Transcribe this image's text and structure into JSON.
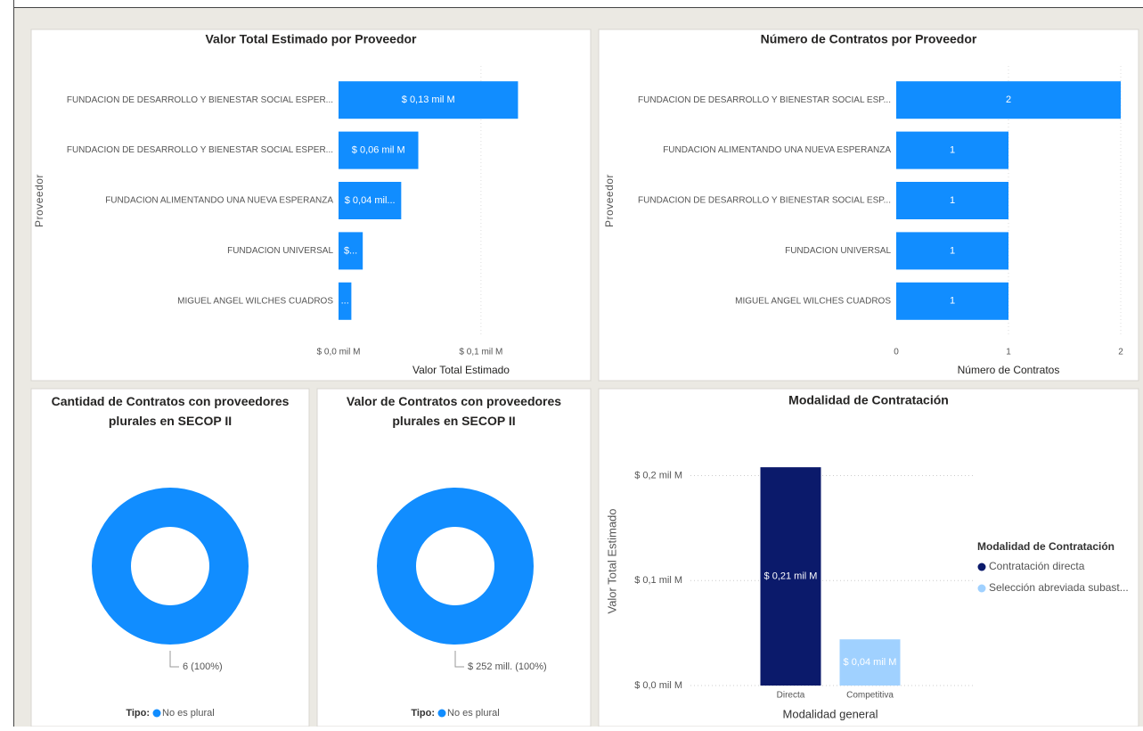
{
  "chart_data": [
    {
      "type": "bar",
      "orientation": "horizontal",
      "title": "Valor Total Estimado por Proveedor",
      "categories": [
        "FUNDACION DE DESARROLLO Y BIENESTAR SOCIAL ESPER...",
        "FUNDACION DE DESARROLLO Y BIENESTAR SOCIAL ESPER...",
        "FUNDACION ALIMENTANDO UNA NUEVA ESPERANZA",
        "FUNDACION UNIVERSAL",
        "MIGUEL ANGEL WILCHES CUADROS"
      ],
      "values": [
        0.126,
        0.056,
        0.044,
        0.017,
        0.009
      ],
      "value_labels": [
        "$ 0,13 mil M",
        "$ 0,06 mil M",
        "$ 0,04 mil...",
        "$...",
        "..."
      ],
      "color": "#118dff",
      "xlabel": "Valor Total Estimado",
      "ylabel": "Proveedor",
      "xlim": [
        0,
        0.172
      ],
      "xticks": [
        {
          "value": 0,
          "label": "$ 0,0 mil M"
        },
        {
          "value": 0.1,
          "label": "$ 0,1 mil M"
        }
      ],
      "grid": true
    },
    {
      "type": "bar",
      "orientation": "horizontal",
      "title": "Número de Contratos por Proveedor",
      "categories": [
        "FUNDACION DE DESARROLLO Y BIENESTAR SOCIAL ESP...",
        "FUNDACION ALIMENTANDO UNA NUEVA ESPERANZA",
        "FUNDACION DE DESARROLLO Y BIENESTAR SOCIAL ESP...",
        "FUNDACION UNIVERSAL",
        "MIGUEL ANGEL WILCHES CUADROS"
      ],
      "values": [
        2,
        1,
        1,
        1,
        1
      ],
      "color": "#118dff",
      "xlabel": "Número de Contratos",
      "ylabel": "Proveedor",
      "xlim": [
        0,
        2
      ],
      "xticks": [
        0,
        1,
        2
      ],
      "grid": true
    },
    {
      "type": "donut",
      "title": "Cantidad de Contratos con proveedores plurales en SECOP II",
      "categories": [
        "No es plural"
      ],
      "values": [
        6
      ],
      "value_labels": [
        "6 (100%)"
      ],
      "legend_title": "Tipo:",
      "color": "#118dff"
    },
    {
      "type": "donut",
      "title": "Valor de Contratos con proveedores plurales en SECOP II",
      "categories": [
        "No es plural"
      ],
      "values": [
        252
      ],
      "value_labels": [
        "$ 252 mill. (100%)"
      ],
      "legend_title": "Tipo:",
      "color": "#118dff"
    },
    {
      "type": "bar",
      "orientation": "vertical",
      "title": "Modalidad de Contratación",
      "categories": [
        "Directa",
        "Competitiva"
      ],
      "series": [
        {
          "name": "Contratación directa",
          "color": "#0b1a6b",
          "values": [
            0.208,
            null
          ],
          "value_labels": [
            "$ 0,21 mil M",
            null
          ]
        },
        {
          "name": "Selección abreviada subast...",
          "color": "#a0d1ff",
          "values": [
            null,
            0.044
          ],
          "value_labels": [
            null,
            "$ 0,04 mil M"
          ]
        }
      ],
      "xlabel": "Modalidad general",
      "ylabel": "Valor Total Estimado",
      "legend_title": "Modalidad de Contratación",
      "ylim": [
        0,
        0.22
      ],
      "yticks": [
        {
          "value": 0,
          "label": "$ 0,0 mil M"
        },
        {
          "value": 0.1,
          "label": "$ 0,1 mil M"
        },
        {
          "value": 0.2,
          "label": "$ 0,2 mil M"
        }
      ],
      "grid": true
    }
  ]
}
